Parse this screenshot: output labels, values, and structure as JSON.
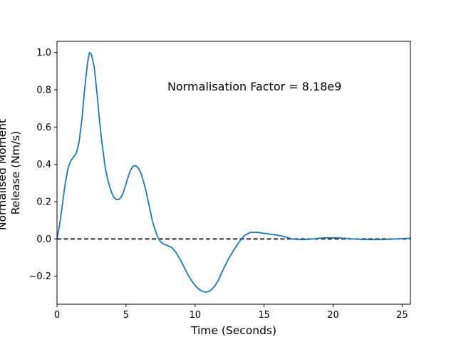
{
  "chart_data": {
    "type": "line",
    "xlabel": "Time (Seconds)",
    "ylabel_lines": [
      "Normalised Moment",
      "Release (Nm/s)"
    ],
    "annotation": "Normalisation Factor = 8.18e9",
    "xlim": [
      0,
      25.6
    ],
    "ylim": [
      -0.35,
      1.06
    ],
    "xticks": [
      0,
      5,
      10,
      15,
      20,
      25
    ],
    "yticks": [
      -0.2,
      0.0,
      0.2,
      0.4,
      0.6,
      0.8,
      1.0
    ],
    "ytick_labels": [
      "−0.2",
      "0.0",
      "0.2",
      "0.4",
      "0.6",
      "0.8",
      "1.0"
    ],
    "grid": false,
    "series": [
      {
        "color": "#1f77b4",
        "points": [
          [
            0.0,
            0.0
          ],
          [
            0.2,
            0.08
          ],
          [
            0.4,
            0.19
          ],
          [
            0.6,
            0.3
          ],
          [
            0.8,
            0.38
          ],
          [
            1.0,
            0.42
          ],
          [
            1.2,
            0.44
          ],
          [
            1.4,
            0.46
          ],
          [
            1.6,
            0.52
          ],
          [
            1.8,
            0.64
          ],
          [
            2.0,
            0.8
          ],
          [
            2.2,
            0.94
          ],
          [
            2.35,
            1.0
          ],
          [
            2.5,
            0.99
          ],
          [
            2.7,
            0.92
          ],
          [
            2.9,
            0.78
          ],
          [
            3.1,
            0.62
          ],
          [
            3.3,
            0.49
          ],
          [
            3.5,
            0.38
          ],
          [
            3.7,
            0.31
          ],
          [
            3.9,
            0.26
          ],
          [
            4.1,
            0.225
          ],
          [
            4.3,
            0.212
          ],
          [
            4.5,
            0.212
          ],
          [
            4.7,
            0.23
          ],
          [
            4.9,
            0.27
          ],
          [
            5.1,
            0.32
          ],
          [
            5.3,
            0.365
          ],
          [
            5.5,
            0.39
          ],
          [
            5.7,
            0.393
          ],
          [
            5.9,
            0.38
          ],
          [
            6.1,
            0.35
          ],
          [
            6.3,
            0.3
          ],
          [
            6.5,
            0.24
          ],
          [
            6.7,
            0.17
          ],
          [
            6.9,
            0.1
          ],
          [
            7.1,
            0.05
          ],
          [
            7.3,
            0.01
          ],
          [
            7.5,
            -0.015
          ],
          [
            7.7,
            -0.027
          ],
          [
            8.0,
            -0.035
          ],
          [
            8.3,
            -0.045
          ],
          [
            8.6,
            -0.07
          ],
          [
            9.0,
            -0.12
          ],
          [
            9.4,
            -0.18
          ],
          [
            9.8,
            -0.23
          ],
          [
            10.2,
            -0.265
          ],
          [
            10.5,
            -0.28
          ],
          [
            10.8,
            -0.285
          ],
          [
            11.1,
            -0.278
          ],
          [
            11.4,
            -0.255
          ],
          [
            11.7,
            -0.22
          ],
          [
            12.0,
            -0.17
          ],
          [
            12.4,
            -0.11
          ],
          [
            12.8,
            -0.06
          ],
          [
            13.2,
            -0.015
          ],
          [
            13.6,
            0.02
          ],
          [
            14.0,
            0.035
          ],
          [
            14.5,
            0.036
          ],
          [
            15.0,
            0.03
          ],
          [
            15.5,
            0.025
          ],
          [
            16.0,
            0.02
          ],
          [
            16.5,
            0.012
          ],
          [
            17.0,
            0.0
          ],
          [
            17.5,
            -0.003
          ],
          [
            18.0,
            -0.003
          ],
          [
            18.5,
            0.0
          ],
          [
            19.0,
            0.004
          ],
          [
            19.5,
            0.006
          ],
          [
            20.0,
            0.006
          ],
          [
            20.5,
            0.005
          ],
          [
            21.0,
            0.003
          ],
          [
            21.5,
            0.0
          ],
          [
            22.0,
            -0.002
          ],
          [
            22.5,
            -0.003
          ],
          [
            23.0,
            -0.003
          ],
          [
            23.5,
            -0.003
          ],
          [
            24.0,
            -0.002
          ],
          [
            24.5,
            0.0
          ],
          [
            25.0,
            0.002
          ],
          [
            25.6,
            0.004
          ]
        ]
      }
    ],
    "reference_line": {
      "y": 0,
      "style": "dashed",
      "color": "#000000"
    }
  }
}
